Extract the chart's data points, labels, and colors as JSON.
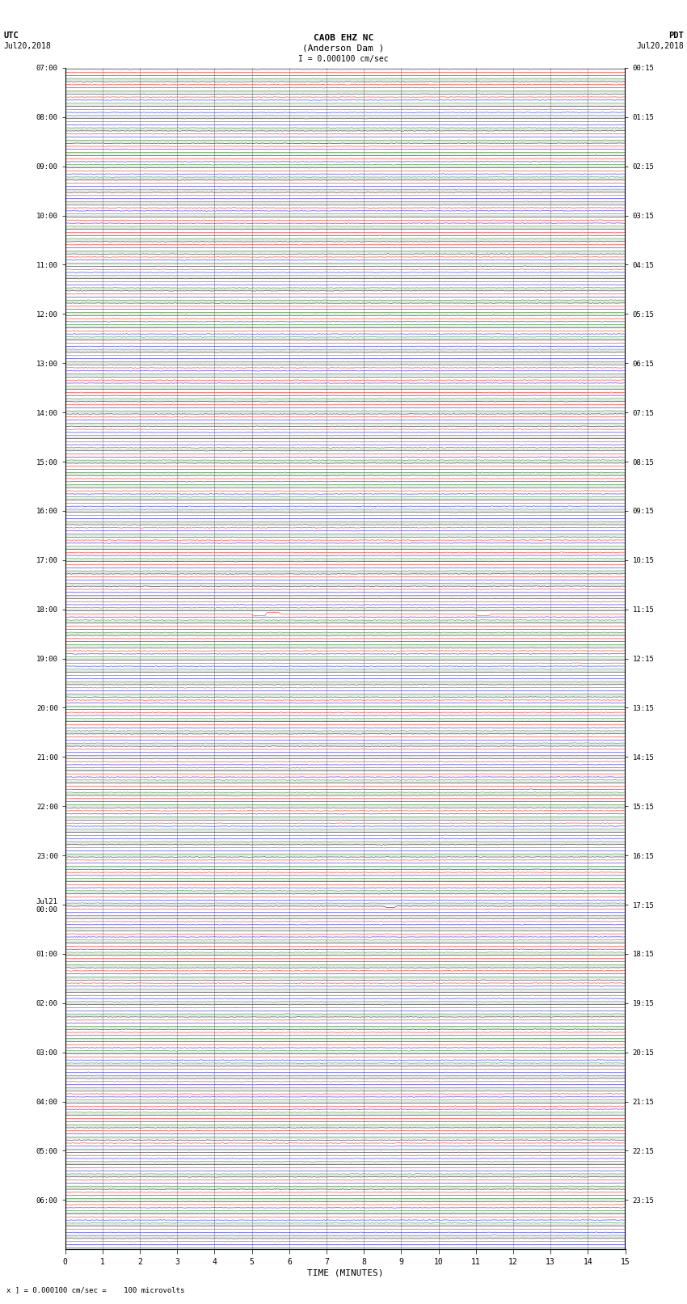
{
  "title_line1": "CAOB EHZ NC",
  "title_line2": "(Anderson Dam )",
  "title_scale": "I = 0.000100 cm/sec",
  "left_label1": "UTC",
  "left_label2": "Jul20,2018",
  "right_label1": "PDT",
  "right_label2": "Jul20,2018",
  "xlabel": "TIME (MINUTES)",
  "footer": "x ] = 0.000100 cm/sec =    100 microvolts",
  "utc_labels_hourly": [
    "07:00",
    "08:00",
    "09:00",
    "10:00",
    "11:00",
    "12:00",
    "13:00",
    "14:00",
    "15:00",
    "16:00",
    "17:00",
    "18:00",
    "19:00",
    "20:00",
    "21:00",
    "22:00",
    "23:00",
    "Jul21\n00:00",
    "01:00",
    "02:00",
    "03:00",
    "04:00",
    "05:00",
    "06:00"
  ],
  "pdt_labels_hourly": [
    "00:15",
    "01:15",
    "02:15",
    "03:15",
    "04:15",
    "05:15",
    "06:15",
    "07:15",
    "08:15",
    "09:15",
    "10:15",
    "11:15",
    "12:15",
    "13:15",
    "14:15",
    "15:15",
    "16:15",
    "17:15",
    "18:15",
    "19:15",
    "20:15",
    "21:15",
    "22:15",
    "23:15"
  ],
  "n_rows": 96,
  "rows_per_hour": 4,
  "n_hours": 24,
  "total_minutes_xaxis": 15,
  "colors": [
    "black",
    "red",
    "blue",
    "green"
  ],
  "bg_color": "white",
  "noise_amp_small": 0.04,
  "event_row": 44,
  "event_row2": 68
}
